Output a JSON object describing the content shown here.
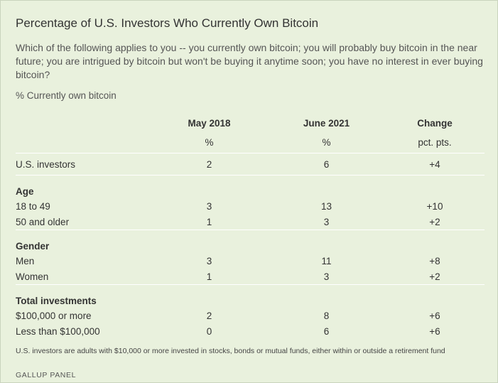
{
  "title": "Percentage of U.S. Investors Who Currently Own Bitcoin",
  "question": "Which of the following applies to you -- you currently own bitcoin; you will probably buy bitcoin in the near future; you are intrigued by bitcoin but won't be buying it anytime soon; you have no interest in ever buying bitcoin?",
  "subtitle": "% Currently own bitcoin",
  "columns": [
    {
      "header": "May 2018",
      "unit": "%"
    },
    {
      "header": "June 2021",
      "unit": "%"
    },
    {
      "header": "Change",
      "unit": "pct. pts."
    }
  ],
  "rows": {
    "us_investors": {
      "label": "U.S. investors",
      "values": [
        "2",
        "6",
        "+4"
      ]
    },
    "age_header": "Age",
    "age_18_49": {
      "label": "18 to 49",
      "values": [
        "3",
        "13",
        "+10"
      ]
    },
    "age_50_older": {
      "label": "50 and older",
      "values": [
        "1",
        "3",
        "+2"
      ]
    },
    "gender_header": "Gender",
    "men": {
      "label": "Men",
      "values": [
        "3",
        "11",
        "+8"
      ]
    },
    "women": {
      "label": "Women",
      "values": [
        "1",
        "3",
        "+2"
      ]
    },
    "investments_header": "Total investments",
    "inv_100k_more": {
      "label": "$100,000 or more",
      "values": [
        "2",
        "8",
        "+6"
      ]
    },
    "inv_less_100k": {
      "label": "Less than $100,000",
      "values": [
        "0",
        "6",
        "+6"
      ]
    }
  },
  "footnote": "U.S. investors are adults with $10,000 or more invested in stocks, bonds or mutual funds, either within or outside a retirement fund",
  "source": "GALLUP PANEL"
}
